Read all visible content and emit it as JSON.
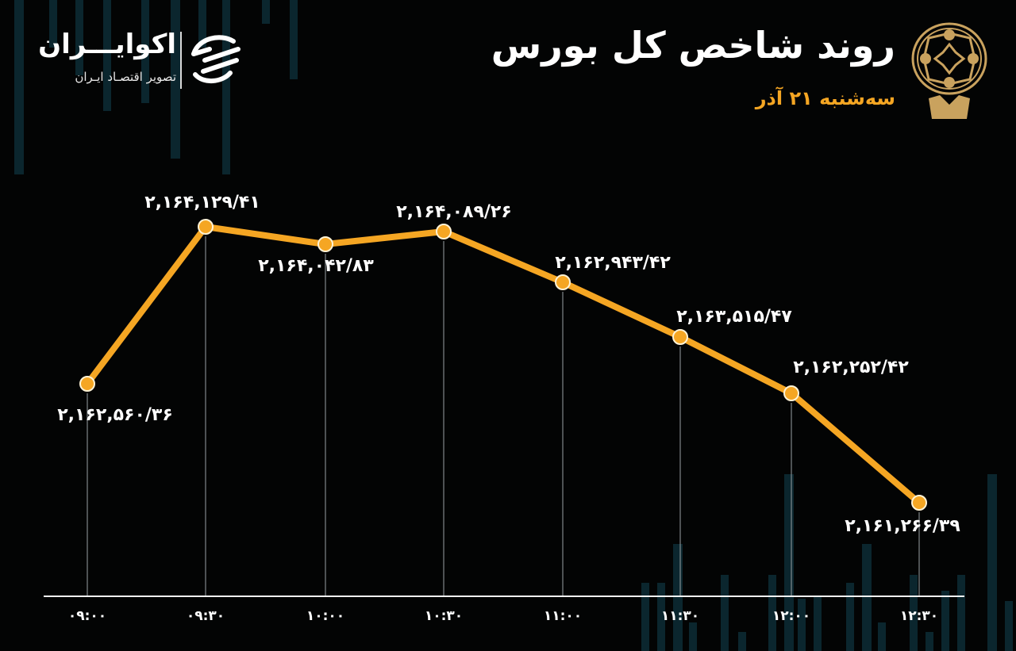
{
  "header": {
    "title": "روند شاخص کل بورس",
    "date": "سه‌شنبه ۲۱ آذر"
  },
  "brand": {
    "name": "اکوایـــران",
    "tagline": "تصویر اقتصـاد ایـران"
  },
  "colors": {
    "background": "#030404",
    "line": "#f5a623",
    "marker_fill": "#f5a623",
    "marker_stroke": "#fff3d6",
    "label_text": "#ffffff",
    "date_text": "#f5a623",
    "emblem": "#c9a25e",
    "bg_bars": "#0c2a33"
  },
  "chart_data": {
    "type": "line",
    "title": "روند شاخص کل بورس",
    "subtitle": "سه‌شنبه ۲۱ آذر",
    "xlabel": "",
    "ylabel": "",
    "grid": false,
    "legend": null,
    "categories": [
      "09:00",
      "09:30",
      "10:00",
      "10:30",
      "11:00",
      "11:30",
      "12:00",
      "12:30"
    ],
    "tick_labels": [
      "۰۹:۰۰",
      "۰۹:۳۰",
      "۱۰:۰۰",
      "۱۰:۳۰",
      "۱۱:۰۰",
      "۱۱:۳۰",
      "۱۲:۰۰",
      "۱۲:۳۰"
    ],
    "values": [
      2162560.36,
      2164129.41,
      2164042.83,
      2164089.26,
      2162943.42,
      2163515.47,
      2162252.42,
      2161266.39
    ],
    "data_labels": [
      "۲,۱۶۲,۵۶۰/۳۶",
      "۲,۱۶۴,۱۲۹/۴۱",
      "۲,۱۶۴,۰۴۲/۸۳",
      "۲,۱۶۴,۰۸۹/۲۶",
      "۲,۱۶۲,۹۴۳/۴۲",
      "۲,۱۶۳,۵۱۵/۴۷",
      "۲,۱۶۲,۲۵۲/۴۲",
      "۲,۱۶۱,۲۶۶/۳۹"
    ],
    "label_positions": [
      "below",
      "above",
      "below",
      "above",
      "above",
      "above",
      "above",
      "below"
    ],
    "note": "Plotted point heights in the graphic are stylized and do not strictly follow values (e.g. 11:30 point drawn lower than 11:00)."
  }
}
